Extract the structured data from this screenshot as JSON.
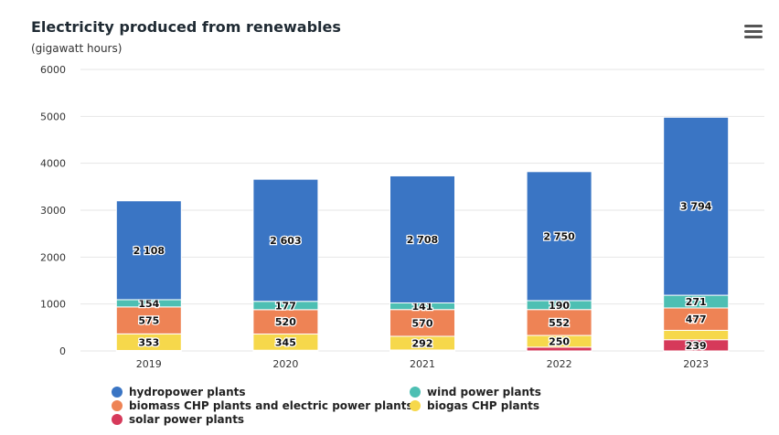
{
  "header": {
    "title": "Electricity produced from renewables",
    "subtitle": "(gigawatt hours)",
    "menu_icon": "hamburger-menu-icon"
  },
  "colors": {
    "hydro": "#3a75c4",
    "wind": "#4dbfb3",
    "biomass": "#ee8355",
    "biogas": "#f6d84b",
    "solar": "#d6395a",
    "grid": "#e6e6e6"
  },
  "chart_data": {
    "type": "bar",
    "stacked": true,
    "title": "Electricity produced from renewables",
    "subtitle": "(gigawatt hours)",
    "categories": [
      "2019",
      "2020",
      "2021",
      "2022",
      "2023"
    ],
    "ylim": [
      0,
      6000
    ],
    "yticks": [
      "0",
      "1000",
      "2000",
      "3000",
      "4000",
      "5000",
      "6000"
    ],
    "grid": true,
    "legend_position": "bottom",
    "series": [
      {
        "name": "solar power plants",
        "key": "solar",
        "values": [
          10,
          15,
          20,
          80,
          239
        ],
        "labels": [
          "",
          "",
          "",
          "",
          "239"
        ]
      },
      {
        "name": "biogas CHP plants",
        "key": "biogas",
        "values": [
          353,
          345,
          292,
          250,
          200
        ],
        "labels": [
          "353",
          "345",
          "292",
          "250",
          ""
        ]
      },
      {
        "name": "biomass CHP plants and electric power plants",
        "key": "biomass",
        "values": [
          575,
          520,
          570,
          552,
          477
        ],
        "labels": [
          "575",
          "520",
          "570",
          "552",
          "477"
        ]
      },
      {
        "name": "wind power plants",
        "key": "wind",
        "values": [
          154,
          177,
          141,
          190,
          271
        ],
        "labels": [
          "154",
          "177",
          "141",
          "190",
          "271"
        ]
      },
      {
        "name": "hydropower plants",
        "key": "hydro",
        "values": [
          2108,
          2603,
          2708,
          2750,
          3794
        ],
        "labels": [
          "2 108",
          "2 603",
          "2 708",
          "2 750",
          "3 794"
        ]
      }
    ]
  },
  "legend": [
    {
      "label": "hydropower plants",
      "key": "hydro"
    },
    {
      "label": "wind power plants",
      "key": "wind"
    },
    {
      "label": "biomass CHP plants and electric power plants",
      "key": "biomass"
    },
    {
      "label": "biogas CHP plants",
      "key": "biogas"
    },
    {
      "label": "solar power plants",
      "key": "solar"
    }
  ]
}
